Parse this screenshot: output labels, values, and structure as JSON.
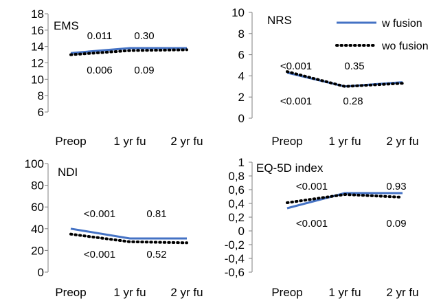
{
  "legend": {
    "w_fusion": "w fusion",
    "wo_fusion": "wo fusion"
  },
  "colors": {
    "w_fusion": "#4472C4",
    "wo_fusion": "#000000"
  },
  "chart_data": [
    {
      "type": "line",
      "title": "EMS",
      "categories": [
        "Preop",
        "1 yr fu",
        "2 yr fu"
      ],
      "ylim": [
        6,
        18
      ],
      "yticks": [
        "6",
        "8",
        "10",
        "12",
        "14",
        "16",
        "18"
      ],
      "series": [
        {
          "name": "w fusion",
          "values": [
            13.2,
            13.8,
            13.8
          ]
        },
        {
          "name": "wo fusion",
          "values": [
            13.0,
            13.5,
            13.6
          ]
        }
      ],
      "annotations": {
        "upper": [
          "0.011",
          "0.30"
        ],
        "lower": [
          "0.006",
          "0.09"
        ]
      }
    },
    {
      "type": "line",
      "title": "NRS",
      "categories": [
        "Preop",
        "1 yr fu",
        "2 yr fu"
      ],
      "ylim": [
        0,
        10
      ],
      "yticks": [
        "0",
        "2",
        "4",
        "6",
        "8",
        "10"
      ],
      "series": [
        {
          "name": "w fusion",
          "values": [
            4.3,
            3.0,
            3.4
          ]
        },
        {
          "name": "wo fusion",
          "values": [
            4.4,
            3.0,
            3.3
          ]
        }
      ],
      "annotations": {
        "upper": [
          "<0.001",
          "0.35"
        ],
        "lower": [
          "<0.001",
          "0.28"
        ]
      }
    },
    {
      "type": "line",
      "title": "NDI",
      "categories": [
        "Preop",
        "1 yr fu",
        "2 yr fu"
      ],
      "ylim": [
        0,
        100
      ],
      "yticks": [
        "0",
        "20",
        "40",
        "60",
        "80",
        "100"
      ],
      "series": [
        {
          "name": "w fusion",
          "values": [
            40,
            31,
            31
          ]
        },
        {
          "name": "wo fusion",
          "values": [
            35,
            28,
            27
          ]
        }
      ],
      "annotations": {
        "upper": [
          "<0.001",
          "0.81"
        ],
        "lower": [
          "<0.001",
          "0.52"
        ]
      }
    },
    {
      "type": "line",
      "title": "EQ-5D index",
      "categories": [
        "Preop",
        "1 yr fu",
        "2 yr fu"
      ],
      "ylim": [
        -0.6,
        1
      ],
      "yticks": [
        "-0,6",
        "-0,4",
        "-0,2",
        "0",
        "0,2",
        "0,4",
        "0,6",
        "0,8",
        "1"
      ],
      "series": [
        {
          "name": "w fusion",
          "values": [
            0.33,
            0.55,
            0.55
          ]
        },
        {
          "name": "wo fusion",
          "values": [
            0.41,
            0.53,
            0.49
          ]
        }
      ],
      "annotations": {
        "upper": [
          "<0.001",
          "0.93"
        ],
        "lower": [
          "<0.001",
          "0.09"
        ]
      }
    }
  ]
}
